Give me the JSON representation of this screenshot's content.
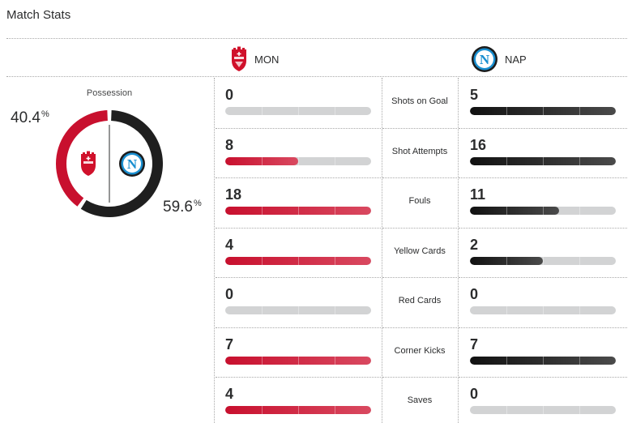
{
  "title": "Match Stats",
  "teams": {
    "home": {
      "abbr": "MON",
      "color": "#c8102e",
      "logo": "monza-crest"
    },
    "away": {
      "abbr": "NAP",
      "color": "#1c1c1c",
      "logo": "napoli-crest"
    }
  },
  "possession": {
    "label": "Possession",
    "home_pct": "40.4",
    "away_pct": "59.6",
    "pct_symbol": "%",
    "home_fraction": 0.404,
    "away_fraction": 0.596
  },
  "stats": [
    {
      "label": "Shots on Goal",
      "home": "0",
      "away": "5",
      "home_frac": 0,
      "away_frac": 1.0
    },
    {
      "label": "Shot Attempts",
      "home": "8",
      "away": "16",
      "home_frac": 0.5,
      "away_frac": 1.0
    },
    {
      "label": "Fouls",
      "home": "18",
      "away": "11",
      "home_frac": 1.0,
      "away_frac": 0.611
    },
    {
      "label": "Yellow Cards",
      "home": "4",
      "away": "2",
      "home_frac": 1.0,
      "away_frac": 0.5
    },
    {
      "label": "Red Cards",
      "home": "0",
      "away": "0",
      "home_frac": 0,
      "away_frac": 0
    },
    {
      "label": "Corner Kicks",
      "home": "7",
      "away": "7",
      "home_frac": 1.0,
      "away_frac": 1.0
    },
    {
      "label": "Saves",
      "home": "4",
      "away": "0",
      "home_frac": 1.0,
      "away_frac": 0
    }
  ]
}
